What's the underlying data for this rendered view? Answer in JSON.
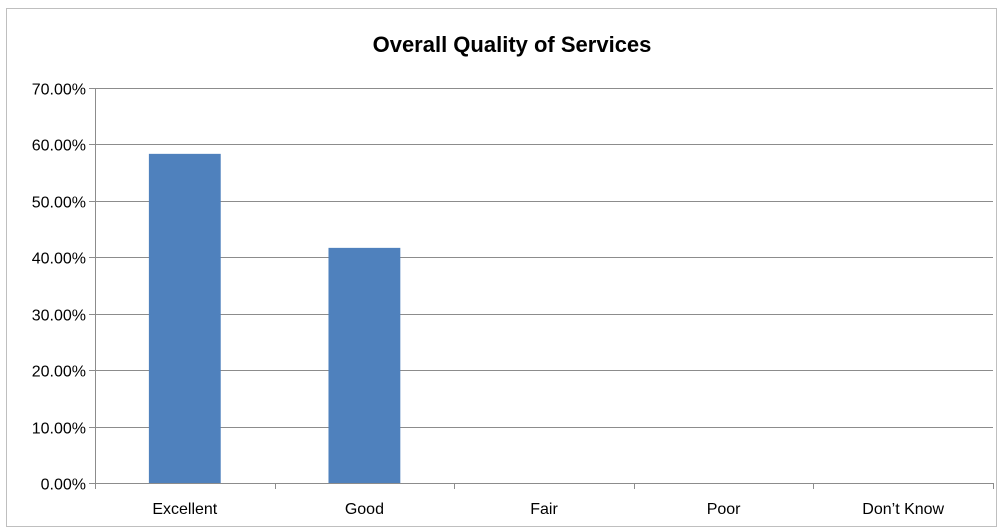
{
  "chart_data": {
    "type": "bar",
    "title": "Overall Quality of Services",
    "categories": [
      "Excellent",
      "Good",
      "Fair",
      "Poor",
      "Don’t Know"
    ],
    "values": [
      58.33,
      41.67,
      0,
      0,
      0
    ],
    "ylim": [
      0,
      70
    ],
    "yticks": [
      0,
      10,
      20,
      30,
      40,
      50,
      60,
      70
    ],
    "ytick_labels": [
      "0.00%",
      "10.00%",
      "20.00%",
      "30.00%",
      "40.00%",
      "50.00%",
      "60.00%",
      "70.00%"
    ],
    "xlabel": "",
    "ylabel": "",
    "grid": true,
    "legend": "none",
    "bar_color": "#4f81bd",
    "grid_color": "#8c8c8c"
  }
}
